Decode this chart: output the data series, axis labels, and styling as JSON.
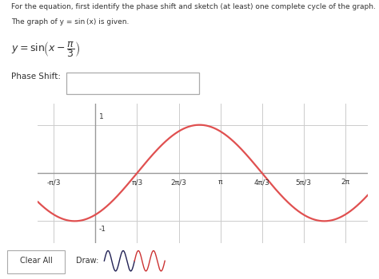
{
  "title_line1": "For the equation, first identify the phase shift and sketch (at least) one complete cycle of the graph.",
  "title_line2": "The graph of y = sin (x) is given.",
  "curve_color": "#e05050",
  "grid_color": "#cccccc",
  "axis_color": "#999999",
  "text_color": "#333333",
  "bg_color": "#ffffff",
  "x_ticks": [
    -1.0472,
    1.0472,
    2.0944,
    3.14159,
    4.18879,
    5.23599,
    6.28318
  ],
  "x_tick_labels": [
    "-π/3",
    "π/3",
    "2π/3",
    "π",
    "4π/3",
    "5π/3",
    "2π"
  ],
  "y_tick_1_label": "1",
  "y_tick_m1_label": "-1",
  "xlim": [
    -1.45,
    6.85
  ],
  "ylim": [
    -1.45,
    1.45
  ],
  "phase_shift": 1.0472
}
